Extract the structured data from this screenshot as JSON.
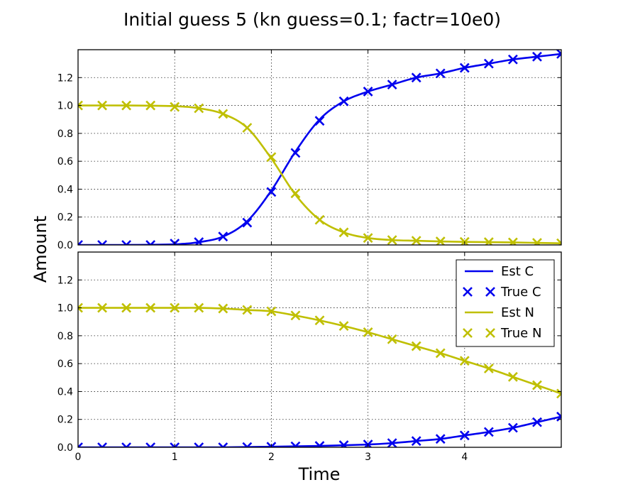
{
  "chart_data": {
    "type": "line",
    "title": "Initial guess 5 (kn guess=0.1; factr=10e0)",
    "xlabel": "Time",
    "ylabel": "Amount",
    "xlim": [
      0,
      5
    ],
    "ylim": [
      0,
      1.4
    ],
    "xticks": [
      "0",
      "1",
      "2",
      "3",
      "4"
    ],
    "yticks": [
      "0.0",
      "0.2",
      "0.4",
      "0.6",
      "0.8",
      "1.0",
      "1.2"
    ],
    "grid": true,
    "legend": {
      "placement": "top-right (bottom panel)",
      "entries": [
        "Est C",
        "True C",
        "Est N",
        "True N"
      ]
    },
    "colors": {
      "C": "#0000ee",
      "N": "#bfbf00"
    },
    "panels": [
      {
        "name": "top",
        "series": [
          {
            "name": "True C",
            "style": "markers",
            "x": [
              0,
              0.25,
              0.5,
              0.75,
              1.0,
              1.25,
              1.5,
              1.75,
              2.0,
              2.25,
              2.5,
              2.75,
              3.0,
              3.25,
              3.5,
              3.75,
              4.0,
              4.25,
              4.5,
              4.75,
              5.0
            ],
            "y": [
              0.0,
              0.0,
              0.0,
              0.0,
              0.01,
              0.02,
              0.06,
              0.16,
              0.38,
              0.66,
              0.89,
              1.03,
              1.1,
              1.15,
              1.2,
              1.23,
              1.27,
              1.3,
              1.33,
              1.35,
              1.37
            ]
          },
          {
            "name": "True N",
            "style": "markers",
            "x": [
              0,
              0.25,
              0.5,
              0.75,
              1.0,
              1.25,
              1.5,
              1.75,
              2.0,
              2.25,
              2.5,
              2.75,
              3.0,
              3.25,
              3.5,
              3.75,
              4.0,
              4.25,
              4.5,
              4.75,
              5.0
            ],
            "y": [
              1.0,
              1.0,
              1.0,
              1.0,
              0.99,
              0.98,
              0.94,
              0.84,
              0.63,
              0.37,
              0.18,
              0.09,
              0.05,
              0.035,
              0.03,
              0.025,
              0.022,
              0.02,
              0.018,
              0.015,
              0.012
            ]
          },
          {
            "name": "Est C",
            "style": "line",
            "x": [
              0,
              0.5,
              1.0,
              1.25,
              1.5,
              1.75,
              2.0,
              2.25,
              2.5,
              2.75,
              3.0,
              3.25,
              3.5,
              3.75,
              4.0,
              4.25,
              4.5,
              4.75,
              5.0
            ],
            "y": [
              0.0,
              0.0,
              0.005,
              0.02,
              0.06,
              0.17,
              0.39,
              0.67,
              0.9,
              1.03,
              1.1,
              1.15,
              1.2,
              1.23,
              1.27,
              1.3,
              1.33,
              1.35,
              1.37
            ]
          },
          {
            "name": "Est N",
            "style": "line",
            "x": [
              0,
              0.5,
              1.0,
              1.25,
              1.5,
              1.75,
              2.0,
              2.25,
              2.5,
              2.75,
              3.0,
              3.25,
              3.5,
              3.75,
              4.0,
              4.25,
              4.5,
              4.75,
              5.0
            ],
            "y": [
              1.0,
              1.0,
              0.995,
              0.98,
              0.94,
              0.84,
              0.62,
              0.36,
              0.18,
              0.09,
              0.05,
              0.035,
              0.03,
              0.025,
              0.022,
              0.02,
              0.018,
              0.015,
              0.012
            ]
          }
        ]
      },
      {
        "name": "bottom",
        "series": [
          {
            "name": "True C",
            "style": "markers",
            "x": [
              0,
              0.25,
              0.5,
              0.75,
              1.0,
              1.25,
              1.5,
              1.75,
              2.0,
              2.25,
              2.5,
              2.75,
              3.0,
              3.25,
              3.5,
              3.75,
              4.0,
              4.25,
              4.5,
              4.75,
              5.0
            ],
            "y": [
              0.0,
              0.0,
              0.0,
              0.0,
              0.0,
              0.0,
              0.0,
              0.002,
              0.004,
              0.007,
              0.01,
              0.015,
              0.02,
              0.03,
              0.045,
              0.06,
              0.085,
              0.11,
              0.14,
              0.18,
              0.22
            ]
          },
          {
            "name": "True N",
            "style": "markers",
            "x": [
              0,
              0.25,
              0.5,
              0.75,
              1.0,
              1.25,
              1.5,
              1.75,
              2.0,
              2.25,
              2.5,
              2.75,
              3.0,
              3.25,
              3.5,
              3.75,
              4.0,
              4.25,
              4.5,
              4.75,
              5.0
            ],
            "y": [
              1.0,
              1.0,
              1.0,
              1.0,
              1.0,
              1.0,
              0.995,
              0.985,
              0.975,
              0.945,
              0.91,
              0.87,
              0.825,
              0.775,
              0.725,
              0.675,
              0.62,
              0.565,
              0.505,
              0.445,
              0.385
            ]
          },
          {
            "name": "Est C",
            "style": "line",
            "x": [
              0,
              0.5,
              1.0,
              1.5,
              2.0,
              2.5,
              3.0,
              3.25,
              3.5,
              3.75,
              4.0,
              4.25,
              4.5,
              4.75,
              5.0
            ],
            "y": [
              0.0,
              0.0,
              0.0,
              0.0,
              0.004,
              0.01,
              0.02,
              0.03,
              0.045,
              0.06,
              0.085,
              0.11,
              0.14,
              0.18,
              0.22
            ]
          },
          {
            "name": "Est N",
            "style": "line",
            "x": [
              0,
              0.5,
              1.0,
              1.25,
              1.5,
              1.75,
              2.0,
              2.25,
              2.5,
              2.75,
              3.0,
              3.25,
              3.5,
              3.75,
              4.0,
              4.25,
              4.5,
              4.75,
              5.0
            ],
            "y": [
              1.0,
              1.0,
              1.0,
              1.0,
              0.995,
              0.985,
              0.975,
              0.945,
              0.91,
              0.87,
              0.825,
              0.775,
              0.725,
              0.675,
              0.62,
              0.565,
              0.505,
              0.445,
              0.385
            ]
          }
        ]
      }
    ]
  }
}
